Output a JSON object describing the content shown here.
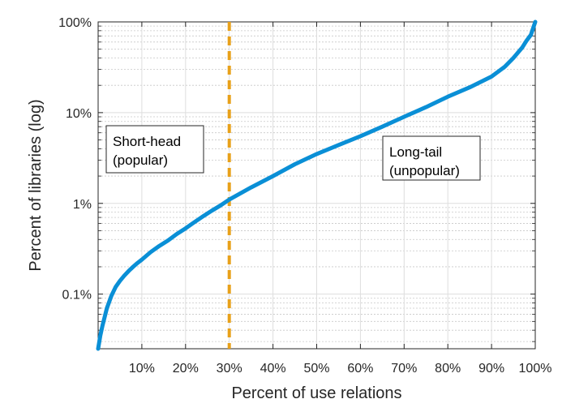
{
  "chart_data": {
    "type": "line",
    "title": "",
    "xlabel": "Percent of use relations",
    "ylabel": "Percent of libraries (log)",
    "xscale": "linear",
    "yscale": "log",
    "xlim": [
      0,
      100
    ],
    "ylim": [
      0.025,
      100
    ],
    "x_ticks": [
      10,
      20,
      30,
      40,
      50,
      60,
      70,
      80,
      90,
      100
    ],
    "x_tick_labels": [
      "10%",
      "20%",
      "30%",
      "40%",
      "50%",
      "60%",
      "70%",
      "80%",
      "90%",
      "100%"
    ],
    "y_ticks": [
      0.1,
      1,
      10,
      100
    ],
    "y_tick_labels": [
      "0.1%",
      "1%",
      "10%",
      "100%"
    ],
    "grid": true,
    "series": [
      {
        "color": "#0a8fd6",
        "x": [
          0,
          0.5,
          1,
          2,
          3,
          4,
          5,
          6,
          7,
          8,
          9,
          10,
          12,
          14,
          16,
          18,
          20,
          22,
          24,
          26,
          28,
          30,
          35,
          40,
          45,
          50,
          55,
          60,
          65,
          70,
          75,
          80,
          85,
          90,
          93,
          95,
          97,
          98,
          99,
          99.5,
          100
        ],
        "y": [
          0.025,
          0.035,
          0.045,
          0.07,
          0.095,
          0.12,
          0.14,
          0.16,
          0.18,
          0.2,
          0.22,
          0.24,
          0.29,
          0.34,
          0.39,
          0.46,
          0.53,
          0.62,
          0.72,
          0.83,
          0.95,
          1.1,
          1.5,
          2.0,
          2.7,
          3.5,
          4.4,
          5.5,
          7.0,
          9.0,
          11.5,
          15,
          19,
          25,
          32,
          40,
          52,
          62,
          72,
          85,
          100
        ]
      }
    ],
    "reference_line": {
      "x": 30,
      "color": "#e8a11a",
      "style": "dashed"
    },
    "annotations": [
      {
        "lines": [
          "Short-head",
          "(popular)"
        ]
      },
      {
        "lines": [
          "Long-tail",
          "(unpopular)"
        ]
      }
    ]
  }
}
